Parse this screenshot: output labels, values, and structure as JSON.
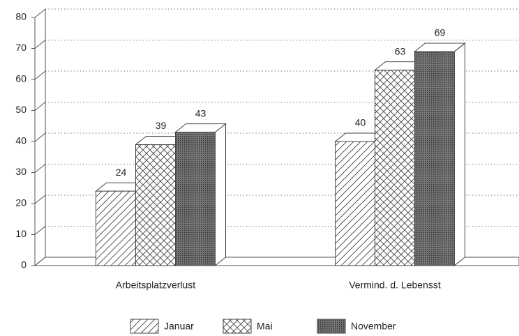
{
  "chart_data": {
    "type": "bar3d",
    "categories": [
      "Arbeitsplatzverlust",
      "Vermind. d. Lebensst"
    ],
    "series": [
      {
        "name": "Januar",
        "color": "#444",
        "values": [
          24,
          40
        ]
      },
      {
        "name": "Mai",
        "color": "#444",
        "values": [
          39,
          63
        ]
      },
      {
        "name": "November",
        "color": "#444",
        "values": [
          43,
          69
        ]
      }
    ],
    "ylim": [
      0,
      80
    ],
    "yticks": [
      0,
      10,
      20,
      30,
      40,
      50,
      60,
      70,
      80
    ],
    "grid": true,
    "legend": "bottom"
  }
}
